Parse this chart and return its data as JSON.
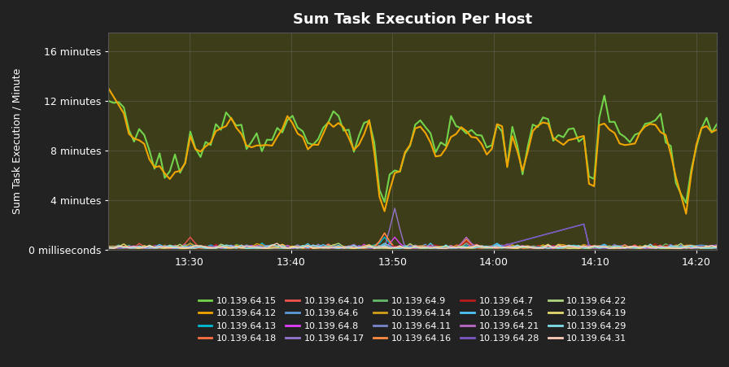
{
  "title": "Sum Task Execution Per Host",
  "ylabel": "Sum Task Execution / Minute",
  "outer_bg": "#222222",
  "plot_bg_color": "#3d3d1a",
  "text_color": "#ffffff",
  "grid_color": "#888888",
  "ytick_labels": [
    "0 milliseconds",
    "4 minutes",
    "8 minutes",
    "12 minutes",
    "16 minutes"
  ],
  "ytick_values": [
    0,
    240,
    480,
    720,
    960
  ],
  "ylim": [
    0,
    1050
  ],
  "series": {
    "10.139.64.15": {
      "color": "#73d44c",
      "main": true
    },
    "10.139.64.12": {
      "color": "#f0a500",
      "main": true
    },
    "10.139.64.13": {
      "color": "#00bcd4",
      "main": false
    },
    "10.139.64.18": {
      "color": "#ff7043",
      "main": false
    },
    "10.139.64.10": {
      "color": "#ef5350",
      "main": false
    },
    "10.139.64.6": {
      "color": "#5c9bd6",
      "main": false
    },
    "10.139.64.8": {
      "color": "#e040fb",
      "main": false
    },
    "10.139.64.17": {
      "color": "#9575cd",
      "main": false
    },
    "10.139.64.9": {
      "color": "#66bb6a",
      "main": false
    },
    "10.139.64.14": {
      "color": "#d4a017",
      "main": false
    },
    "10.139.64.11": {
      "color": "#7986cb",
      "main": false
    },
    "10.139.64.16": {
      "color": "#ff8c42",
      "main": false
    },
    "10.139.64.7": {
      "color": "#b71c1c",
      "main": false
    },
    "10.139.64.5": {
      "color": "#4fc3f7",
      "main": false
    },
    "10.139.64.21": {
      "color": "#ba68c8",
      "main": false
    },
    "10.139.64.28": {
      "color": "#7e57c2",
      "main": false
    },
    "10.139.64.22": {
      "color": "#aed581",
      "main": false
    },
    "10.139.64.19": {
      "color": "#e6d96e",
      "main": false
    },
    "10.139.64.29": {
      "color": "#80deea",
      "main": false
    },
    "10.139.64.31": {
      "color": "#ffccbc",
      "main": false
    }
  },
  "legend_order": [
    "10.139.64.15",
    "10.139.64.12",
    "10.139.64.13",
    "10.139.64.18",
    "10.139.64.10",
    "10.139.64.6",
    "10.139.64.8",
    "10.139.64.17",
    "10.139.64.9",
    "10.139.64.14",
    "10.139.64.11",
    "10.139.64.16",
    "10.139.64.7",
    "10.139.64.5",
    "10.139.64.21",
    "10.139.64.28",
    "10.139.64.22",
    "10.139.64.19",
    "10.139.64.29",
    "10.139.64.31"
  ]
}
